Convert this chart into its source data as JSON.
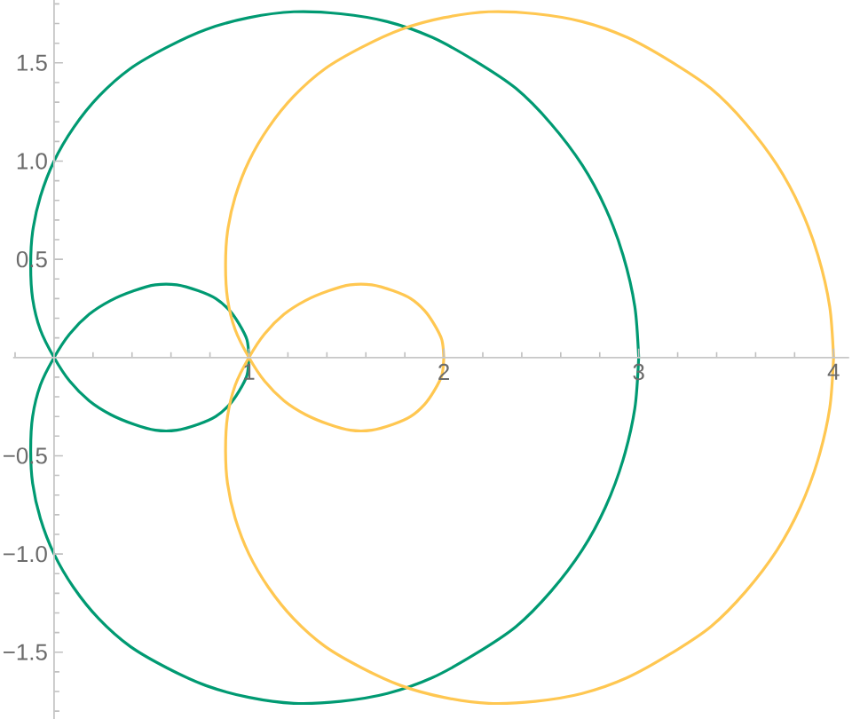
{
  "chart_data": {
    "type": "line",
    "marker": "none",
    "xlim": [
      -0.21,
      4.08
    ],
    "ylim": [
      -1.84,
      1.82
    ],
    "xticks": [
      {
        "value": -0.2,
        "label": null
      },
      {
        "value": 0.2,
        "label": null
      },
      {
        "value": 0.4,
        "label": null
      },
      {
        "value": 0.6,
        "label": null
      },
      {
        "value": 0.8,
        "label": null
      },
      1,
      {
        "value": 1.2,
        "label": null
      },
      {
        "value": 1.4,
        "label": null
      },
      {
        "value": 1.6,
        "label": null
      },
      {
        "value": 1.8,
        "label": null
      },
      2,
      {
        "value": 2.2,
        "label": null
      },
      {
        "value": 2.4,
        "label": null
      },
      {
        "value": 2.6,
        "label": null
      },
      {
        "value": 2.8,
        "label": null
      },
      3,
      {
        "value": 3.2,
        "label": null
      },
      {
        "value": 3.4,
        "label": null
      },
      {
        "value": 3.6,
        "label": null
      },
      {
        "value": 3.8,
        "label": null
      },
      4
    ],
    "yticks": [
      {
        "value": -1.8,
        "label": null
      },
      {
        "value": -1.7,
        "label": null
      },
      {
        "value": -1.6,
        "label": null
      },
      {
        "value": -1.5,
        "label": "−1.5"
      },
      {
        "value": -1.4,
        "label": null
      },
      {
        "value": -1.3,
        "label": null
      },
      {
        "value": -1.2,
        "label": null
      },
      {
        "value": -1.1,
        "label": null
      },
      {
        "value": -1,
        "label": "−1.0"
      },
      {
        "value": -0.9,
        "label": null
      },
      {
        "value": -0.8,
        "label": null
      },
      {
        "value": -0.7,
        "label": null
      },
      {
        "value": -0.6,
        "label": null
      },
      {
        "value": -0.5,
        "label": "−0.5"
      },
      {
        "value": -0.4,
        "label": null
      },
      {
        "value": -0.3,
        "label": null
      },
      {
        "value": -0.2,
        "label": null
      },
      {
        "value": -0.1,
        "label": null
      },
      {
        "value": 0.1,
        "label": null
      },
      {
        "value": 0.2,
        "label": null
      },
      {
        "value": 0.3,
        "label": null
      },
      {
        "value": 0.4,
        "label": null
      },
      0.5,
      {
        "value": 0.6,
        "label": null
      },
      {
        "value": 0.7,
        "label": null
      },
      {
        "value": 0.8,
        "label": null
      },
      {
        "value": 0.9,
        "label": null
      },
      {
        "value": 1,
        "label": "1.0"
      },
      {
        "value": 1.1,
        "label": null
      },
      {
        "value": 1.2,
        "label": null
      },
      {
        "value": 1.3,
        "label": null
      },
      {
        "value": 1.4,
        "label": null
      },
      1.5,
      {
        "value": 1.6,
        "label": null
      },
      {
        "value": 1.7,
        "label": null
      },
      {
        "value": 1.8,
        "label": null
      }
    ],
    "series": [
      {
        "color": "#009a72",
        "x": [
          3,
          2.98,
          2.92,
          2.83,
          2.71,
          2.55,
          2.37,
          2.16,
          1.94,
          1.71,
          1.47,
          1.23,
          1.0,
          0.78,
          0.58,
          0.39,
          0.23,
          0.1,
          0,
          -0.07,
          -0.11,
          -0.12,
          -0.11,
          -0.07,
          0,
          0.08,
          0.18,
          0.29,
          0.41,
          0.52,
          0.63,
          0.74,
          0.83,
          0.9,
          0.95,
          0.99,
          1
        ],
        "values": [
          0,
          -0.26,
          -0.52,
          -0.76,
          -0.98,
          -1.19,
          -1.37,
          -1.51,
          -1.63,
          -1.71,
          -1.75,
          -1.76,
          -1.73,
          -1.67,
          -1.58,
          -1.47,
          -1.33,
          -1.17,
          -1,
          -0.82,
          -0.64,
          -0.47,
          -0.3,
          -0.14,
          0,
          0.12,
          0.22,
          0.29,
          0.34,
          0.37,
          0.37,
          0.34,
          0.3,
          0.24,
          0.17,
          0.09,
          0
        ]
      },
      {
        "color": "#009a72",
        "x": [
          1,
          0.99,
          0.95,
          0.9,
          0.83,
          0.74,
          0.63,
          0.52,
          0.41,
          0.29,
          0.18,
          0.08,
          0,
          -0.07,
          -0.11,
          -0.12,
          -0.11,
          -0.07,
          0,
          0.1,
          0.23,
          0.39,
          0.58,
          0.78,
          1.0,
          1.23,
          1.47,
          1.71,
          1.94,
          2.16,
          2.37,
          2.55,
          2.71,
          2.83,
          2.92,
          2.98,
          3
        ],
        "values": [
          0,
          -0.09,
          -0.17,
          -0.24,
          -0.3,
          -0.34,
          -0.37,
          -0.37,
          -0.34,
          -0.29,
          -0.22,
          -0.12,
          0,
          0.14,
          0.3,
          0.47,
          0.64,
          0.82,
          1,
          1.17,
          1.33,
          1.47,
          1.58,
          1.67,
          1.73,
          1.76,
          1.75,
          1.71,
          1.63,
          1.51,
          1.37,
          1.19,
          0.98,
          0.76,
          0.52,
          0.26,
          0
        ]
      },
      {
        "color": "#ffc751",
        "x": [
          4,
          3.98,
          3.92,
          3.83,
          3.71,
          3.55,
          3.37,
          3.16,
          2.94,
          2.71,
          2.47,
          2.23,
          2.0,
          1.78,
          1.58,
          1.39,
          1.23,
          1.1,
          1,
          0.93,
          0.89,
          0.88,
          0.89,
          0.93,
          1,
          1.08,
          1.18,
          1.29,
          1.41,
          1.52,
          1.63,
          1.74,
          1.83,
          1.9,
          1.95,
          1.99,
          2
        ],
        "values": [
          0,
          -0.26,
          -0.52,
          -0.76,
          -0.98,
          -1.19,
          -1.37,
          -1.51,
          -1.63,
          -1.71,
          -1.75,
          -1.76,
          -1.73,
          -1.67,
          -1.58,
          -1.47,
          -1.33,
          -1.17,
          -1,
          -0.82,
          -0.64,
          -0.47,
          -0.3,
          -0.14,
          0,
          0.12,
          0.22,
          0.29,
          0.34,
          0.37,
          0.37,
          0.34,
          0.3,
          0.24,
          0.17,
          0.09,
          0
        ]
      },
      {
        "color": "#ffc751",
        "x": [
          2,
          1.99,
          1.95,
          1.9,
          1.83,
          1.74,
          1.63,
          1.52,
          1.41,
          1.29,
          1.18,
          1.08,
          1,
          0.93,
          0.89,
          0.88,
          0.89,
          0.93,
          1,
          1.1,
          1.23,
          1.39,
          1.58,
          1.78,
          2.0,
          2.23,
          2.47,
          2.71,
          2.94,
          3.16,
          3.37,
          3.55,
          3.71,
          3.83,
          3.92,
          3.98,
          4
        ],
        "values": [
          0,
          -0.09,
          -0.17,
          -0.24,
          -0.3,
          -0.34,
          -0.37,
          -0.37,
          -0.34,
          -0.29,
          -0.22,
          -0.12,
          0,
          0.14,
          0.3,
          0.47,
          0.64,
          0.82,
          1,
          1.17,
          1.33,
          1.47,
          1.58,
          1.67,
          1.73,
          1.76,
          1.75,
          1.71,
          1.63,
          1.51,
          1.37,
          1.19,
          0.98,
          0.76,
          0.52,
          0.26,
          0
        ]
      }
    ]
  }
}
